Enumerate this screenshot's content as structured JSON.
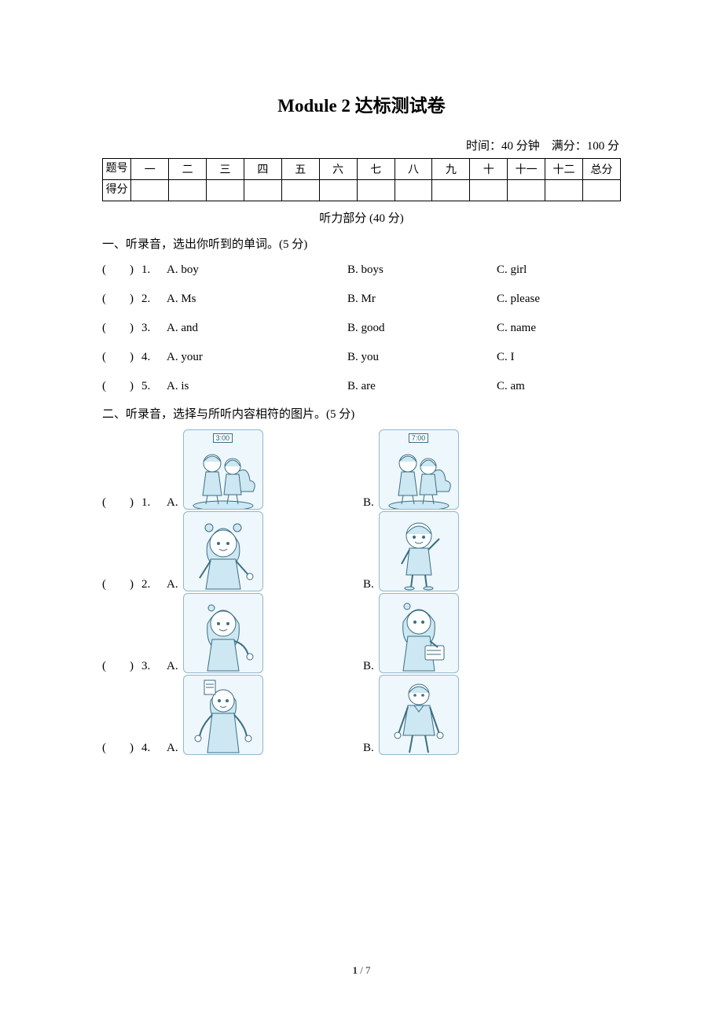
{
  "title": "Module 2 达标测试卷",
  "timing": "时间：40 分钟　满分：100 分",
  "score_table": {
    "row1_label": "题号",
    "cols": [
      "一",
      "二",
      "三",
      "四",
      "五",
      "六",
      "七",
      "八",
      "九",
      "十",
      "十一",
      "十二",
      "总分"
    ],
    "row2_label": "得分"
  },
  "listening_header": "听力部分 (40 分)",
  "section1": {
    "head": "一、听录音，选出你听到的单词。(5 分)",
    "items": [
      {
        "paren": "(",
        "close": ")",
        "num": "1.",
        "a": "A. boy",
        "b": "B. boys",
        "c": "C. girl"
      },
      {
        "paren": "(",
        "close": ")",
        "num": "2.",
        "a": "A. Ms",
        "b": "B. Mr",
        "c": "C. please"
      },
      {
        "paren": "(",
        "close": ")",
        "num": "3.",
        "a": "A. and",
        "b": "B. good",
        "c": "C. name"
      },
      {
        "paren": "(",
        "close": ")",
        "num": "4.",
        "a": "A. your",
        "b": "B. you",
        "c": "C. I"
      },
      {
        "paren": "(",
        "close": ")",
        "num": "5.",
        "a": "A. is",
        "b": "B. are",
        "c": "C. am"
      }
    ]
  },
  "section2": {
    "head": "二、听录音，选择与所听内容相符的图片。(5 分)",
    "items": [
      {
        "paren": "(",
        "close": ")",
        "num": "1.",
        "a": "A.",
        "b": "B.",
        "clock_a": "3:00",
        "clock_b": "7:00",
        "type": "pair"
      },
      {
        "paren": "(",
        "close": ")",
        "num": "2.",
        "a": "A.",
        "b": "B.",
        "type": "girl_boy"
      },
      {
        "paren": "(",
        "close": ")",
        "num": "3.",
        "a": "A.",
        "b": "B.",
        "type": "girl_girl"
      },
      {
        "paren": "(",
        "close": ")",
        "num": "4.",
        "a": "A.",
        "b": "B.",
        "type": "woman_man"
      }
    ]
  },
  "footer": "1 / 7",
  "colors": {
    "stroke": "#3a6e84",
    "fill_light": "#cde8f2",
    "skin": "#ffffff",
    "bg": "#eef7fb"
  }
}
